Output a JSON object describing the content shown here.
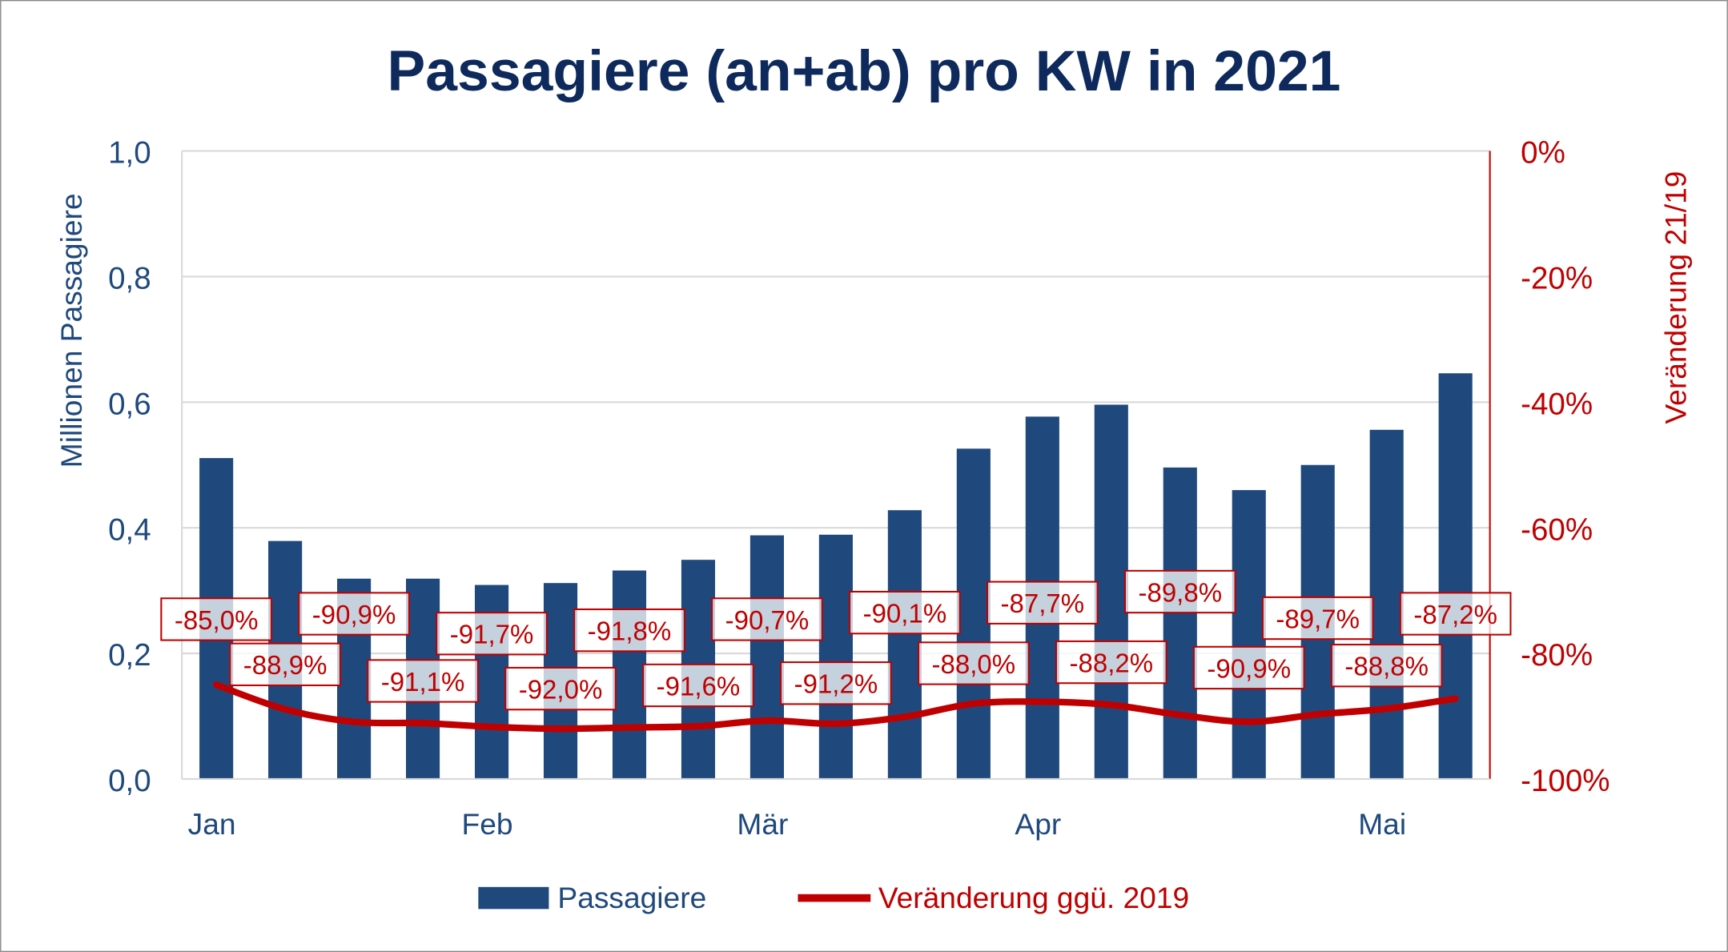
{
  "chart_data": {
    "type": "bar+line",
    "title": "Passagiere (an+ab) pro KW in 2021",
    "ylabel_left": "Millionen Passagiere",
    "ylabel_right": "Veränderung 21/19",
    "ylim_left": [
      0,
      1.0
    ],
    "ylim_right": [
      -100,
      0
    ],
    "left_ticks": [
      "0,0",
      "0,2",
      "0,4",
      "0,6",
      "0,8",
      "1,0"
    ],
    "right_ticks": [
      "-100%",
      "-80%",
      "-60%",
      "-40%",
      "-20%",
      "0%"
    ],
    "x_month_labels": [
      {
        "index": 0,
        "label": "Jan"
      },
      {
        "index": 4,
        "label": "Feb"
      },
      {
        "index": 8,
        "label": "Mär"
      },
      {
        "index": 12,
        "label": "Apr"
      },
      {
        "index": 17,
        "label": "Mai"
      }
    ],
    "grid": true,
    "legend_position": "bottom",
    "series": [
      {
        "name": "Passagiere",
        "type": "bar",
        "axis": "left",
        "color": "#1F497D",
        "values": [
          0.511,
          0.379,
          0.319,
          0.319,
          0.309,
          0.312,
          0.332,
          0.349,
          0.388,
          0.389,
          0.428,
          0.526,
          0.577,
          0.596,
          0.496,
          0.46,
          0.5,
          0.556,
          0.646
        ]
      },
      {
        "name": "Veränderung ggü. 2019",
        "type": "line",
        "axis": "right",
        "color": "#C00000",
        "values": [
          -85.0,
          -88.9,
          -90.9,
          -91.1,
          -91.7,
          -92.0,
          -91.8,
          -91.6,
          -90.7,
          -91.2,
          -90.1,
          -88.0,
          -87.7,
          -88.2,
          -89.8,
          -90.9,
          -89.7,
          -88.8,
          -87.2
        ],
        "data_labels": [
          "-85,0%",
          "-88,9%",
          "-90,9%",
          "-91,1%",
          "-91,7%",
          "-92,0%",
          "-91,8%",
          "-91,6%",
          "-90,7%",
          "-91,2%",
          "-90,1%",
          "-88,0%",
          "-87,7%",
          "-88,2%",
          "-89,8%",
          "-90,9%",
          "-89,7%",
          "-88,8%",
          "-87,2%"
        ]
      }
    ]
  }
}
